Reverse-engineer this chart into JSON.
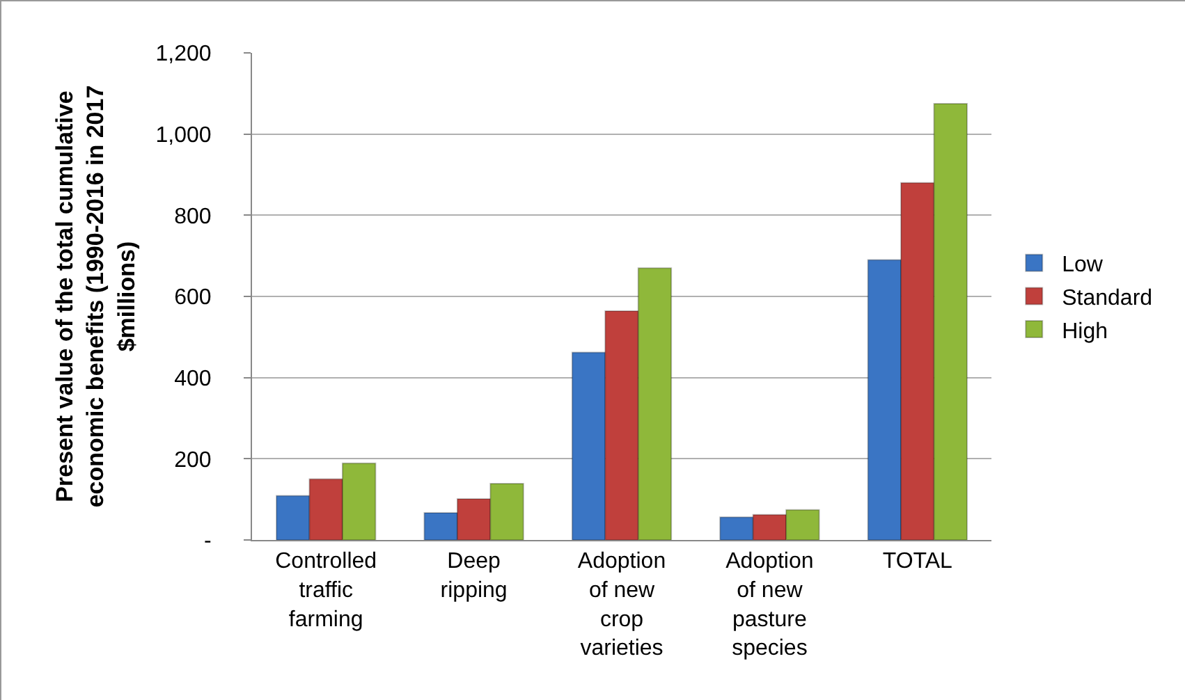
{
  "chart_data": {
    "type": "bar",
    "ylabel": "Present value of the total cumulative economic benefits (1990-2016 in 2017 $millions)",
    "categories": [
      "Controlled traffic farming",
      "Deep ripping",
      "Adoption of new crop varieties",
      "Adoption of new pasture species",
      "TOTAL"
    ],
    "series": [
      {
        "name": "Low",
        "color": "#3a75c4",
        "values": [
          109,
          67,
          462,
          56,
          690
        ]
      },
      {
        "name": "Standard",
        "color": "#c0403c",
        "values": [
          150,
          101,
          564,
          62,
          880
        ]
      },
      {
        "name": "High",
        "color": "#8fb83a",
        "values": [
          189,
          139,
          670,
          74,
          1075
        ]
      }
    ],
    "ylim": [
      0,
      1200
    ],
    "yticks": [
      {
        "value": 0,
        "label": "-"
      },
      200,
      400,
      600,
      800,
      {
        "value": 1000,
        "label": "1,000"
      },
      {
        "value": 1200,
        "label": "1,200"
      }
    ],
    "grid": "y",
    "legend": "right"
  }
}
